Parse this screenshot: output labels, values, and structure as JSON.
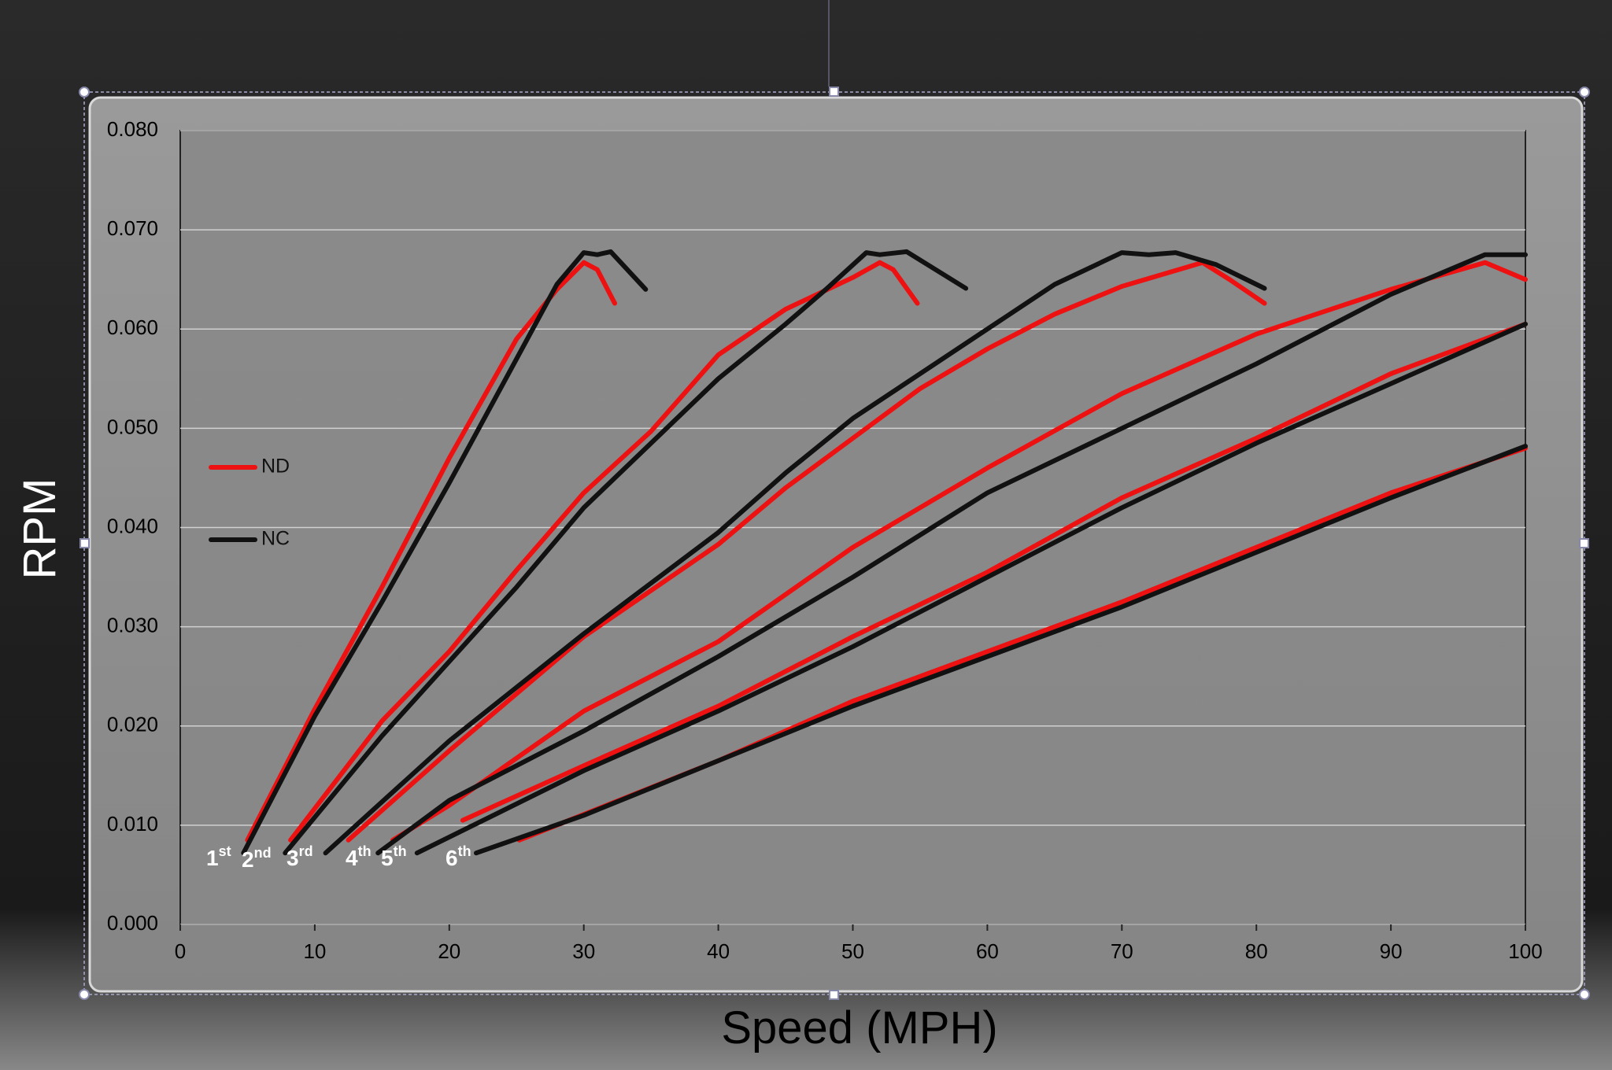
{
  "chart_data": {
    "type": "line",
    "x_label": "Speed (MPH)",
    "y_label": "RPM",
    "xlim": [
      0,
      100
    ],
    "xticks": [
      0,
      10,
      20,
      30,
      40,
      50,
      60,
      70,
      80,
      90,
      100
    ],
    "ylim": [
      0,
      0.08
    ],
    "yticks": [
      {
        "value": 0,
        "label": "0.000"
      },
      {
        "value": 0.01,
        "label": "0.010"
      },
      {
        "value": 0.02,
        "label": "0.020"
      },
      {
        "value": 0.03,
        "label": "0.030"
      },
      {
        "value": 0.04,
        "label": "0.040"
      },
      {
        "value": 0.05,
        "label": "0.050"
      },
      {
        "value": 0.06,
        "label": "0.060"
      },
      {
        "value": 0.07,
        "label": "0.070"
      },
      {
        "value": 0.08,
        "label": "0.080"
      }
    ],
    "grid": true,
    "legend": "left",
    "gear_labels": [
      {
        "base": "1",
        "sup": "st"
      },
      {
        "base": "2",
        "sup": "nd"
      },
      {
        "base": "3",
        "sup": "rd"
      },
      {
        "base": "4",
        "sup": "th"
      },
      {
        "base": "5",
        "sup": "th"
      },
      {
        "base": "6",
        "sup": "th"
      }
    ],
    "series": [
      {
        "name": "ND",
        "color": "#ee1111",
        "x": [
          5,
          10,
          15,
          20,
          25,
          28,
          30,
          31,
          32.3
        ],
        "values": [
          0.0085,
          0.0217,
          0.034,
          0.047,
          0.059,
          0.064,
          0.0667,
          0.066,
          0.0626
        ]
      },
      {
        "name": "NC",
        "color": "#111111",
        "x": [
          4.7,
          10,
          15,
          20,
          25,
          28,
          30,
          31,
          32,
          34.6
        ],
        "values": [
          0.0072,
          0.021,
          0.0325,
          0.0445,
          0.057,
          0.0645,
          0.0677,
          0.0675,
          0.0678,
          0.064
        ]
      },
      {
        "name": "ND",
        "color": "#ee1111",
        "x": [
          8.2,
          15,
          20,
          25,
          30,
          35,
          40,
          45,
          50,
          52,
          53,
          54.8
        ],
        "values": [
          0.0085,
          0.0205,
          0.0275,
          0.0357,
          0.0435,
          0.0497,
          0.0574,
          0.062,
          0.0652,
          0.0667,
          0.066,
          0.0626
        ]
      },
      {
        "name": "NC",
        "color": "#111111",
        "x": [
          7.8,
          15,
          20,
          25,
          30,
          35,
          40,
          45,
          48,
          51,
          52,
          54,
          58.4
        ],
        "values": [
          0.0072,
          0.019,
          0.0265,
          0.034,
          0.042,
          0.0485,
          0.055,
          0.0605,
          0.064,
          0.0677,
          0.0675,
          0.0678,
          0.0641
        ]
      },
      {
        "name": "ND",
        "color": "#ee1111",
        "x": [
          12.5,
          20,
          30,
          40,
          45,
          50,
          55,
          60,
          65,
          70,
          75,
          76,
          78,
          80.6
        ],
        "values": [
          0.0085,
          0.0175,
          0.029,
          0.0383,
          0.044,
          0.049,
          0.054,
          0.058,
          0.0615,
          0.0643,
          0.0663,
          0.0667,
          0.065,
          0.0626
        ]
      },
      {
        "name": "NC",
        "color": "#111111",
        "x": [
          10.8,
          20,
          30,
          40,
          45,
          50,
          55,
          60,
          65,
          70,
          72,
          74,
          77,
          80.6
        ],
        "values": [
          0.0072,
          0.0185,
          0.0293,
          0.0395,
          0.0455,
          0.051,
          0.0555,
          0.06,
          0.0645,
          0.0677,
          0.0675,
          0.0677,
          0.0665,
          0.0641
        ]
      },
      {
        "name": "ND",
        "color": "#ee1111",
        "x": [
          15.8,
          20,
          30,
          40,
          50,
          60,
          70,
          80,
          90,
          97,
          100
        ],
        "values": [
          0.0085,
          0.012,
          0.0215,
          0.0285,
          0.038,
          0.046,
          0.0535,
          0.0595,
          0.064,
          0.0667,
          0.065
        ]
      },
      {
        "name": "NC",
        "color": "#111111",
        "x": [
          14.7,
          20,
          30,
          40,
          50,
          60,
          70,
          80,
          90,
          97,
          100
        ],
        "values": [
          0.0072,
          0.0125,
          0.0195,
          0.027,
          0.035,
          0.0435,
          0.05,
          0.0565,
          0.0635,
          0.0675,
          0.0675
        ]
      },
      {
        "name": "ND",
        "color": "#ee1111",
        "x": [
          21,
          30,
          40,
          50,
          60,
          70,
          80,
          90,
          100
        ],
        "values": [
          0.0105,
          0.016,
          0.022,
          0.029,
          0.0355,
          0.043,
          0.049,
          0.0555,
          0.0605
        ]
      },
      {
        "name": "NC",
        "color": "#111111",
        "x": [
          17.6,
          30,
          40,
          50,
          60,
          70,
          80,
          90,
          100
        ],
        "values": [
          0.0072,
          0.0155,
          0.0215,
          0.028,
          0.035,
          0.042,
          0.0485,
          0.0545,
          0.0605
        ]
      },
      {
        "name": "ND",
        "color": "#ee1111",
        "x": [
          25.2,
          40,
          50,
          60,
          70,
          80,
          90,
          100
        ],
        "values": [
          0.0085,
          0.0165,
          0.0225,
          0.0275,
          0.0325,
          0.038,
          0.0435,
          0.048
        ]
      },
      {
        "name": "NC",
        "color": "#111111",
        "x": [
          22,
          30,
          40,
          50,
          60,
          70,
          80,
          90,
          100
        ],
        "values": [
          0.0072,
          0.011,
          0.0165,
          0.022,
          0.027,
          0.032,
          0.0375,
          0.043,
          0.0482
        ]
      }
    ]
  }
}
